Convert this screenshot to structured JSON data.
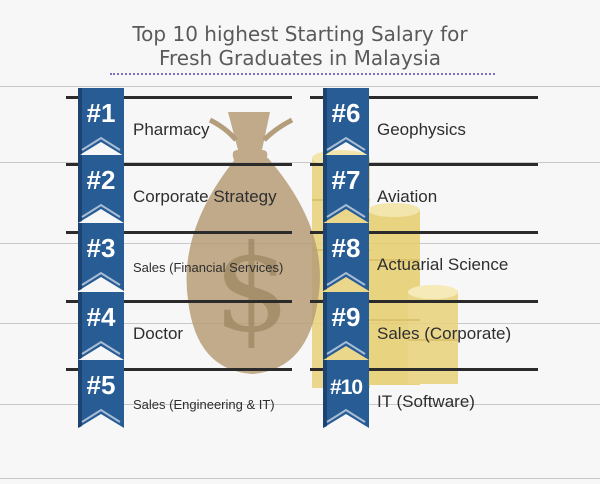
{
  "title": {
    "line1": "Top 10 highest Starting Salary for",
    "line2": "Fresh Graduates in Malaysia"
  },
  "colors": {
    "ribbon": "#285c95",
    "ribbon_dark": "#1d4470",
    "rule": "#2b2b2b",
    "bag": "#b79d77",
    "coins": "#e9d27a",
    "title": "#5a5a5a",
    "underline": "#7b6fc9"
  },
  "illustration": [
    "money-bag-icon",
    "dollar-sign-icon",
    "coin-stack-icon"
  ],
  "rankings": [
    {
      "rank": "#1",
      "label": "Pharmacy"
    },
    {
      "rank": "#2",
      "label": "Corporate Strategy"
    },
    {
      "rank": "#3",
      "label": "Sales (Financial Services)"
    },
    {
      "rank": "#4",
      "label": "Doctor"
    },
    {
      "rank": "#5",
      "label": "Sales (Engineering & IT)"
    },
    {
      "rank": "#6",
      "label": "Geophysics"
    },
    {
      "rank": "#7",
      "label": "Aviation"
    },
    {
      "rank": "#8",
      "label": "Actuarial Science"
    },
    {
      "rank": "#9",
      "label": "Sales (Corporate)"
    },
    {
      "rank": "#10",
      "label": "IT (Software)"
    }
  ]
}
